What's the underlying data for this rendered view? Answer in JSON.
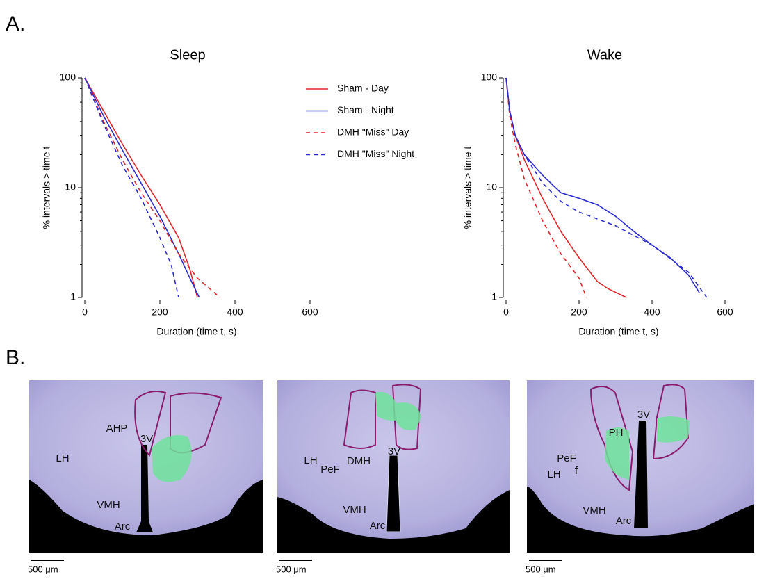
{
  "panel_labels": [
    "A.",
    "B."
  ],
  "chart_data": [
    {
      "type": "line",
      "title": "Sleep",
      "x_label": "Duration (time t, s)",
      "y_label": "% intervals > time t",
      "y_scale": "log",
      "xlim": [
        0,
        600
      ],
      "xticks": [
        0,
        200,
        400,
        600
      ],
      "ylim": [
        1,
        100
      ],
      "yticks": [
        1,
        10,
        100
      ],
      "minor_yticks": [
        2,
        3,
        4,
        5,
        6,
        7,
        8,
        9,
        20,
        30,
        40,
        50,
        60,
        70,
        80,
        90
      ],
      "series": [
        {
          "name": "Sham - Day",
          "color": "#e0262b",
          "dash": "solid",
          "x": [
            0,
            50,
            100,
            150,
            200,
            250,
            280,
            300
          ],
          "values": [
            100,
            50,
            25,
            13,
            7,
            3.5,
            1.8,
            1
          ]
        },
        {
          "name": "Sham - Night",
          "color": "#2b2bd0",
          "dash": "solid",
          "x": [
            0,
            50,
            100,
            150,
            200,
            250,
            280,
            305
          ],
          "values": [
            100,
            45,
            22,
            11,
            5.5,
            2.5,
            1.5,
            1
          ]
        },
        {
          "name": "DMH \"Miss\" Day",
          "color": "#e0262b",
          "dash": "dashed",
          "x": [
            0,
            50,
            100,
            150,
            200,
            250,
            300,
            360
          ],
          "values": [
            100,
            40,
            18,
            9,
            5,
            2.5,
            1.5,
            1
          ]
        },
        {
          "name": "DMH \"Miss\" Night",
          "color": "#2b2bd0",
          "dash": "dashed",
          "x": [
            0,
            50,
            100,
            150,
            200,
            230,
            250
          ],
          "values": [
            100,
            38,
            16,
            8,
            3.5,
            2,
            1
          ]
        }
      ]
    },
    {
      "type": "line",
      "title": "Wake",
      "x_label": "Duration (time t, s)",
      "y_label": "% intervals > time t",
      "y_scale": "log",
      "xlim": [
        0,
        600
      ],
      "xticks": [
        0,
        200,
        400,
        600
      ],
      "ylim": [
        1,
        100
      ],
      "yticks": [
        1,
        10,
        100
      ],
      "minor_yticks": [
        2,
        3,
        4,
        5,
        6,
        7,
        8,
        9,
        20,
        30,
        40,
        50,
        60,
        70,
        80,
        90
      ],
      "series": [
        {
          "color": "#e0262b",
          "dash": "solid",
          "x": [
            0,
            10,
            25,
            50,
            100,
            150,
            200,
            250,
            280,
            330
          ],
          "values": [
            100,
            50,
            30,
            18,
            8,
            4,
            2.3,
            1.4,
            1.2,
            1
          ]
        },
        {
          "color": "#2b2bd0",
          "dash": "solid",
          "x": [
            0,
            10,
            25,
            50,
            100,
            150,
            200,
            250,
            300,
            350,
            400,
            450,
            500,
            530
          ],
          "values": [
            100,
            50,
            30,
            20,
            13,
            9,
            8,
            7,
            5.5,
            4,
            3,
            2.3,
            1.6,
            1.1
          ]
        },
        {
          "color": "#e0262b",
          "dash": "dashed",
          "x": [
            0,
            10,
            25,
            50,
            100,
            150,
            200,
            220
          ],
          "values": [
            100,
            45,
            25,
            12,
            5,
            2.5,
            1.5,
            1
          ]
        },
        {
          "color": "#2b2bd0",
          "dash": "dashed",
          "x": [
            0,
            10,
            25,
            50,
            100,
            150,
            200,
            300,
            400,
            500,
            550
          ],
          "values": [
            100,
            50,
            30,
            20,
            11,
            7.5,
            6,
            4.5,
            3,
            1.7,
            1
          ]
        }
      ]
    }
  ],
  "histology": {
    "scale_bar": "500 μm",
    "images": [
      {
        "labels": [
          "LH",
          "AHP",
          "3V",
          "VMH",
          "Arc"
        ]
      },
      {
        "labels": [
          "LH",
          "PeF",
          "DMH",
          "3V",
          "VMH",
          "Arc"
        ]
      },
      {
        "labels": [
          "3V",
          "PH",
          "PeF",
          "LH",
          "f",
          "VMH",
          "Arc"
        ]
      }
    ]
  }
}
